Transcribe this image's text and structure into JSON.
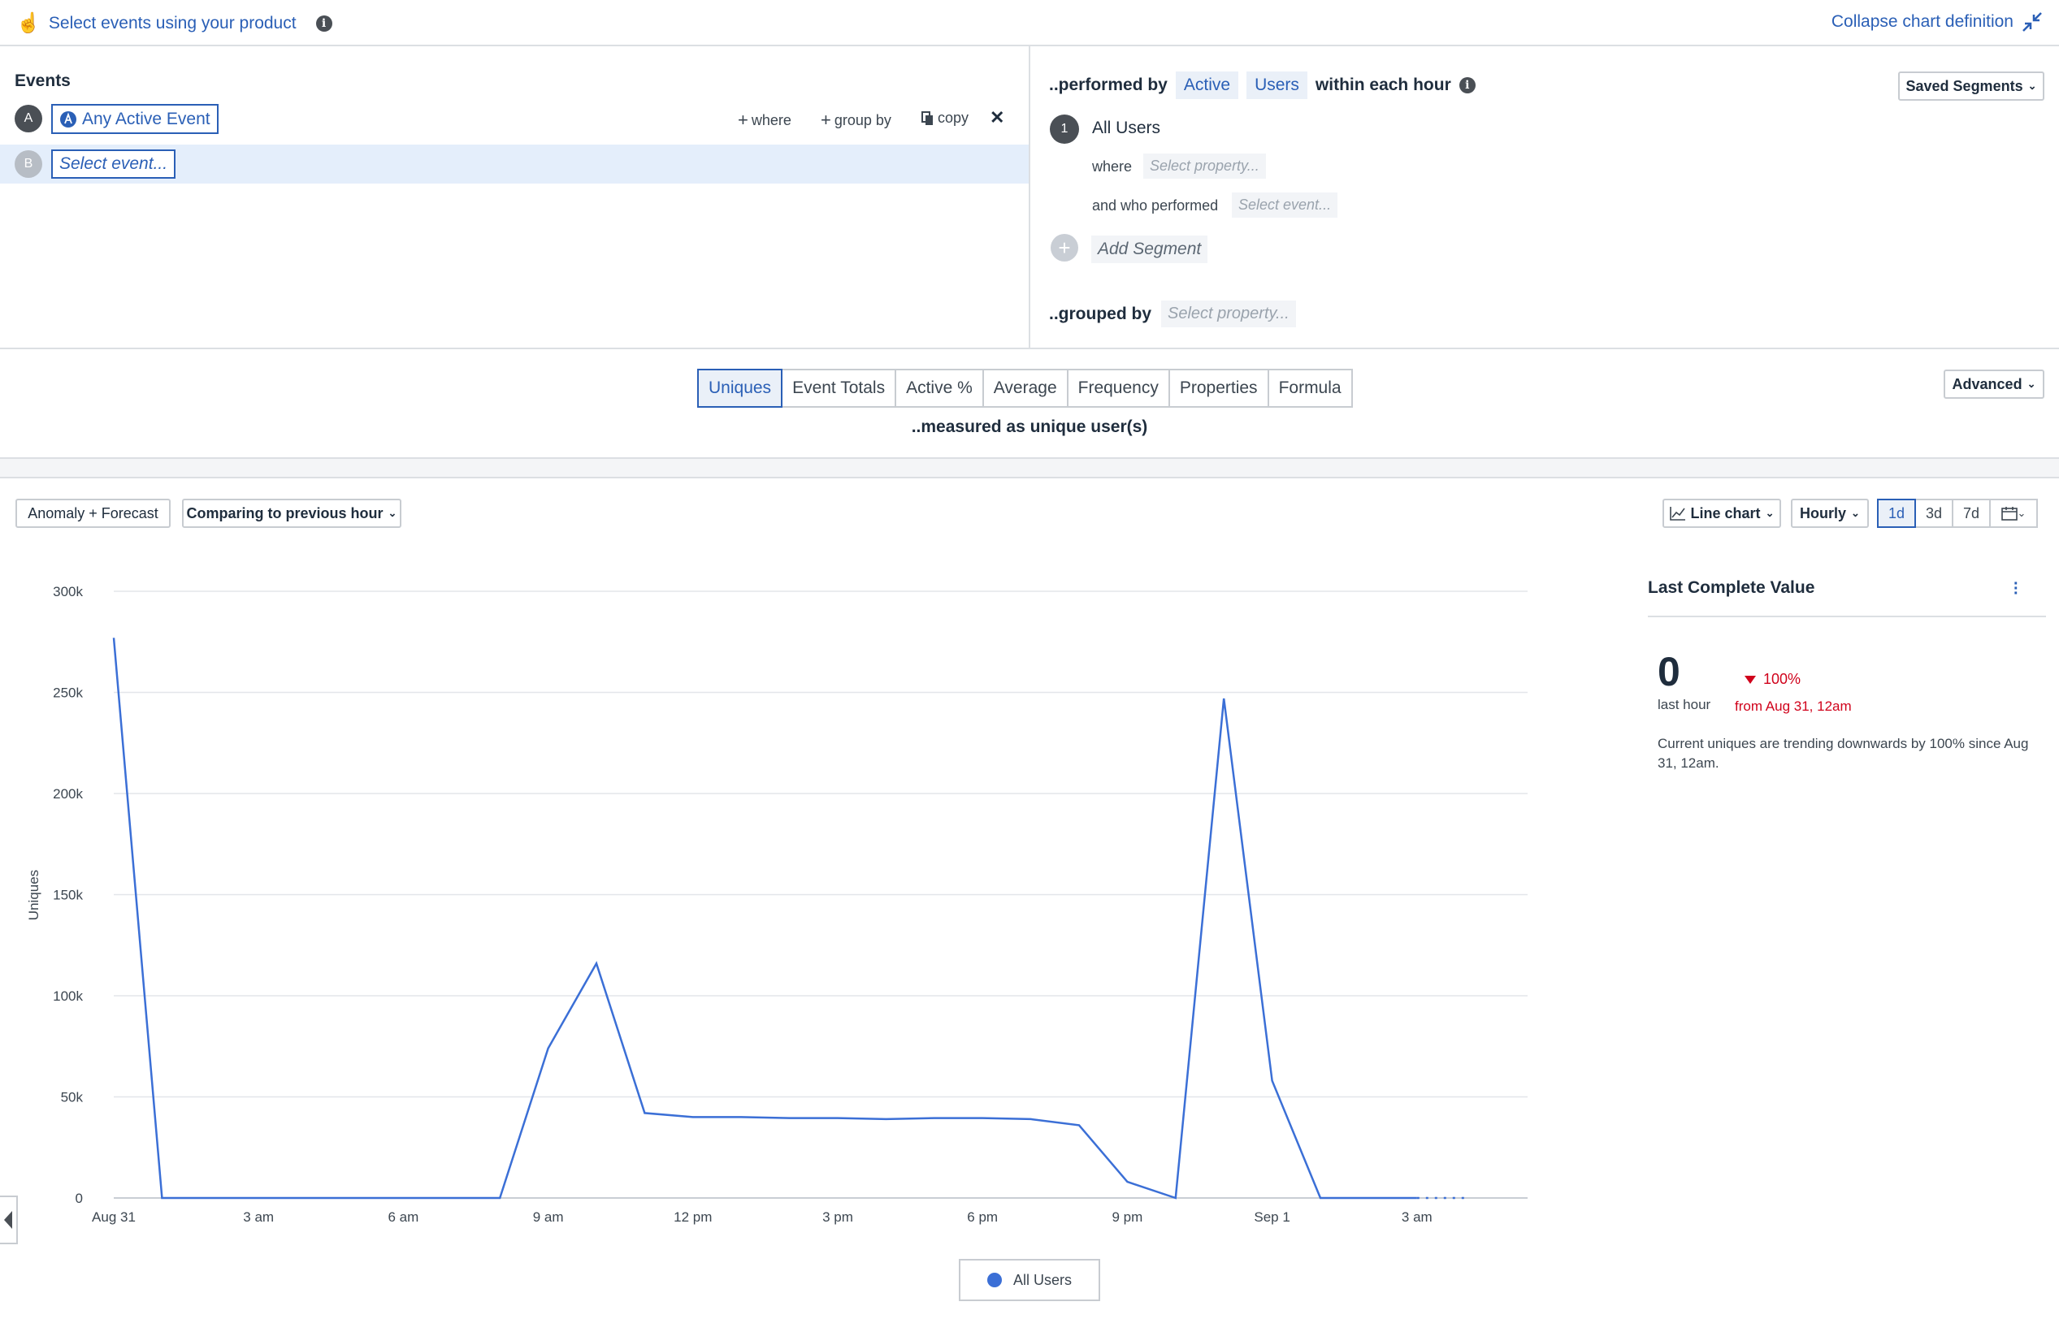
{
  "topbar": {
    "select_events": "Select events using your product",
    "collapse": "Collapse chart definition"
  },
  "events": {
    "heading": "Events",
    "rows": [
      {
        "letter": "A",
        "label": "Any Active Event"
      },
      {
        "letter": "B",
        "label": "Select event..."
      }
    ],
    "actions": {
      "where": "where",
      "group_by": "group by",
      "copy": "copy",
      "remove": "✕"
    }
  },
  "segments": {
    "performed_by": "..performed by",
    "chip_active": "Active",
    "chip_users": "Users",
    "within": "within each hour",
    "saved_segments": "Saved Segments",
    "segment_number": "1",
    "segment_name": "All Users",
    "where_label": "where",
    "where_placeholder": "Select property...",
    "who_performed_label": "and who performed",
    "who_performed_placeholder": "Select event...",
    "add_segment": "Add Segment",
    "grouped_by": "..grouped by",
    "grouped_placeholder": "Select property..."
  },
  "measure": {
    "tabs": [
      "Uniques",
      "Event Totals",
      "Active %",
      "Average",
      "Frequency",
      "Properties",
      "Formula"
    ],
    "active_tab": "Uniques",
    "caption": "..measured as unique user(s)",
    "advanced": "Advanced"
  },
  "controls": {
    "anomaly": "Anomaly + Forecast",
    "comparing": "Comparing to previous hour",
    "chart_type": "Line chart",
    "interval": "Hourly",
    "ranges": [
      "1d",
      "3d",
      "7d"
    ],
    "active_range": "1d"
  },
  "side_panel": {
    "title": "Last Complete Value",
    "value": "0",
    "value_sub": "last hour",
    "change": "100%",
    "change_from": "from Aug 31, 12am",
    "description": "Current uniques are trending downwards by 100% since Aug 31, 12am."
  },
  "colors": {
    "accent": "#2a5fb6",
    "line": "#3b6fd6",
    "down": "#d0021b"
  },
  "chart_data": {
    "type": "line",
    "ylabel": "Uniques",
    "ylim": [
      0,
      300000
    ],
    "yticks": [
      "0",
      "50k",
      "100k",
      "150k",
      "200k",
      "250k",
      "300k"
    ],
    "x_tick_labels": [
      "Aug 31",
      "3 am",
      "6 am",
      "9 am",
      "12 pm",
      "3 pm",
      "6 pm",
      "9 pm",
      "Sep 1",
      "3 am"
    ],
    "x_hours_start_label": "Aug 31 12am",
    "series": [
      {
        "name": "All Users",
        "hours": [
          0,
          1,
          2,
          3,
          4,
          5,
          6,
          7,
          8,
          9,
          10,
          11,
          12,
          13,
          14,
          15,
          16,
          17,
          18,
          19,
          20,
          21,
          22,
          23,
          24,
          25,
          26,
          27,
          28
        ],
        "values": [
          277000,
          0,
          0,
          0,
          0,
          0,
          0,
          0,
          0,
          74000,
          116000,
          42000,
          40000,
          40000,
          39500,
          39500,
          39000,
          39500,
          39500,
          39000,
          36000,
          8000,
          0,
          247000,
          58000,
          0,
          0,
          0,
          0
        ]
      }
    ],
    "legend": "bottom-center"
  }
}
